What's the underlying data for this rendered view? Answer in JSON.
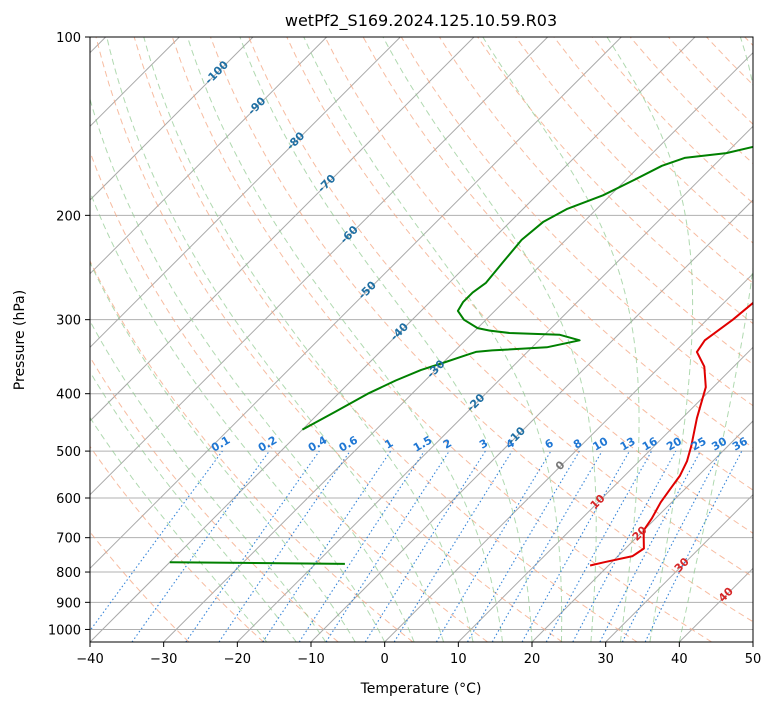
{
  "chart_data": {
    "type": "line",
    "title": "wetPf2_S169.2024.125.10.59.R03",
    "xlabel": "Temperature (°C)",
    "ylabel": "Pressure (hPa)",
    "xlim": [
      -40,
      50
    ],
    "ylim": [
      1050,
      100
    ],
    "y_scale": "log",
    "x_ticks": [
      -40,
      -30,
      -20,
      -10,
      0,
      10,
      20,
      30,
      40,
      50
    ],
    "x_tick_labels": [
      "−40",
      "−30",
      "−20",
      "−10",
      "0",
      "10",
      "20",
      "30",
      "40",
      "50"
    ],
    "y_ticks": [
      100,
      200,
      300,
      400,
      500,
      600,
      700,
      800,
      900,
      1000
    ],
    "y_tick_labels": [
      "100",
      "200",
      "300",
      "400",
      "500",
      "600",
      "700",
      "800",
      "900",
      "1000"
    ],
    "grid": true,
    "series": [
      {
        "color": "#e00000",
        "style": "solid",
        "points": [
          [
            17.5,
            780
          ],
          [
            19,
            770
          ],
          [
            22,
            752
          ],
          [
            22.5,
            730
          ],
          [
            21,
            700
          ],
          [
            20,
            680
          ],
          [
            19.5,
            650
          ],
          [
            18.5,
            610
          ],
          [
            18,
            580
          ],
          [
            17.5,
            550
          ],
          [
            16.5,
            520
          ],
          [
            15,
            490
          ],
          [
            12,
            440
          ],
          [
            9,
            390
          ],
          [
            6,
            360
          ],
          [
            3,
            340
          ],
          [
            2.5,
            325
          ],
          [
            3.5,
            300
          ],
          [
            4,
            280
          ],
          [
            4,
            260
          ],
          [
            5,
            240
          ],
          [
            6,
            220
          ],
          [
            7,
            200
          ],
          [
            7,
            185
          ],
          [
            6.5,
            170
          ],
          [
            6.5,
            160
          ],
          [
            7,
            150
          ],
          [
            8,
            140
          ],
          [
            10,
            128
          ],
          [
            12,
            120
          ],
          [
            13,
            114
          ],
          [
            13.5,
            108
          ],
          [
            16,
            102
          ],
          [
            17.5,
            100
          ]
        ]
      },
      {
        "color": "#008000",
        "style": "solid",
        "points": [
          [
            -40,
            770
          ],
          [
            -30,
            772
          ],
          [
            -16,
            775
          ]
        ]
      },
      {
        "color": "#008000",
        "style": "solid",
        "points": [
          [
            -40,
            460
          ],
          [
            -38,
            430
          ],
          [
            -36,
            400
          ],
          [
            -34,
            380
          ],
          [
            -32,
            365
          ],
          [
            -30,
            355
          ],
          [
            -28,
            345
          ],
          [
            -27,
            340
          ],
          [
            -25,
            338
          ],
          [
            -18,
            334
          ],
          [
            -14.5,
            325
          ],
          [
            -18,
            318
          ],
          [
            -25,
            316
          ],
          [
            -28,
            313
          ],
          [
            -30,
            310
          ],
          [
            -33,
            300
          ],
          [
            -35,
            290
          ],
          [
            -35.5,
            280
          ],
          [
            -35.5,
            270
          ],
          [
            -35,
            260
          ],
          [
            -35.5,
            240
          ],
          [
            -36,
            220
          ],
          [
            -35.5,
            205
          ],
          [
            -34,
            195
          ],
          [
            -31,
            185
          ],
          [
            -29,
            175
          ],
          [
            -27,
            165
          ],
          [
            -25,
            160
          ],
          [
            -20,
            157
          ],
          [
            -17,
            153
          ],
          [
            -14,
            148
          ],
          [
            -11,
            142
          ],
          [
            -11.5,
            133
          ],
          [
            -11,
            128
          ],
          [
            -8,
            123
          ],
          [
            -5,
            118
          ],
          [
            -4,
            112
          ],
          [
            -3,
            107
          ],
          [
            -3,
            100
          ]
        ]
      }
    ],
    "reference_lines": {
      "isotherms": {
        "color": "#a9a9a9",
        "skew": "45deg",
        "spacing_c": 10
      },
      "dry_adiabats": {
        "color": "#f4a582",
        "style": "dashed"
      },
      "moist_adiabats": {
        "color": "#8fc98f",
        "style": "dashed"
      },
      "mixing_ratio": {
        "color": "#1f77d4",
        "style": "dotted"
      }
    },
    "isotherm_labels": [
      {
        "text": "-100",
        "color": "#1f6fa3"
      },
      {
        "text": "-90",
        "color": "#1f6fa3"
      },
      {
        "text": "-80",
        "color": "#1f6fa3"
      },
      {
        "text": "-70",
        "color": "#1f6fa3"
      },
      {
        "text": "-60",
        "color": "#1f6fa3"
      },
      {
        "text": "-50",
        "color": "#1f6fa3"
      },
      {
        "text": "-40",
        "color": "#1f6fa3"
      },
      {
        "text": "-30",
        "color": "#1f6fa3"
      },
      {
        "text": "-20",
        "color": "#1f6fa3"
      },
      {
        "text": "-10",
        "color": "#1f6fa3"
      },
      {
        "text": "0",
        "color": "#777777"
      },
      {
        "text": "10",
        "color": "#d62728"
      },
      {
        "text": "20",
        "color": "#d62728"
      },
      {
        "text": "30",
        "color": "#d62728"
      },
      {
        "text": "40",
        "color": "#d62728"
      }
    ],
    "mixing_ratio_labels": [
      "0.1",
      "0.2",
      "0.4",
      "0.6",
      "1",
      "1.5",
      "2",
      "3",
      "4",
      "6",
      "8",
      "10",
      "13",
      "16",
      "20",
      "25",
      "30",
      "36"
    ]
  }
}
